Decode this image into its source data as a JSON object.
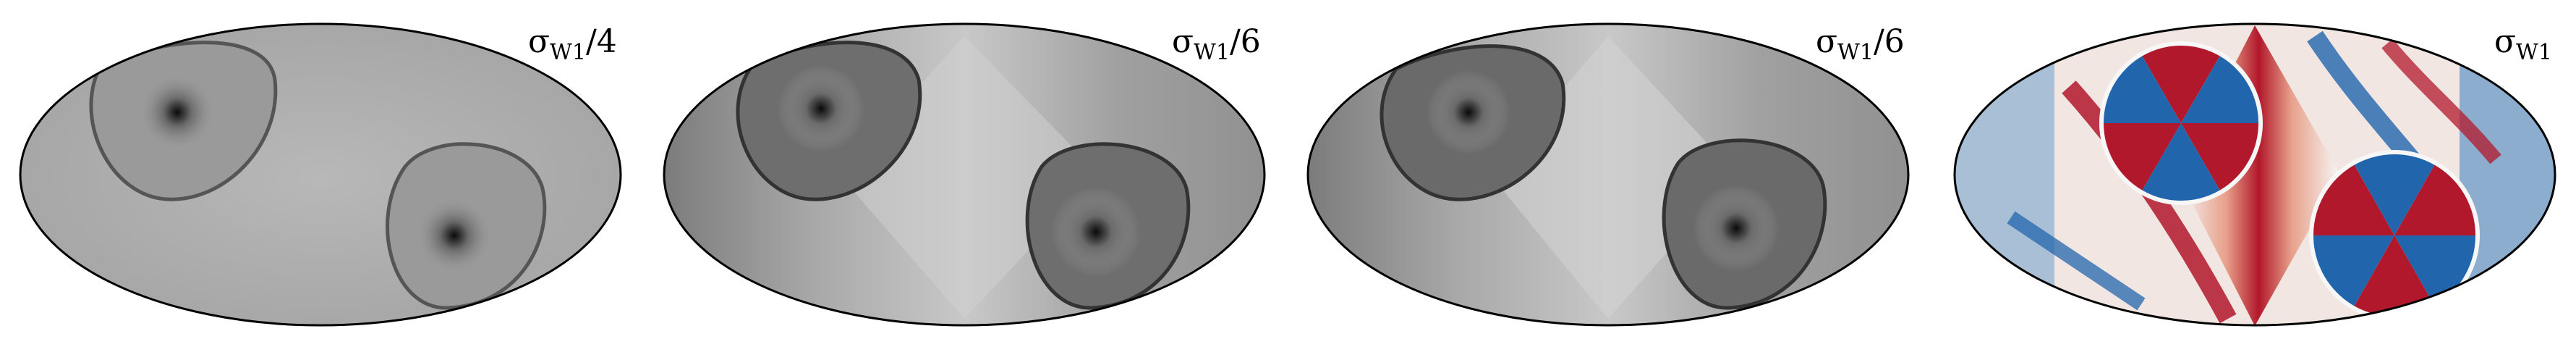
{
  "panels": [
    {
      "label_main": "σ",
      "label_sub": "W1",
      "label_suffix": "/4",
      "colormap": "gray"
    },
    {
      "label_main": "σ",
      "label_sub": "W1",
      "label_suffix": "/6",
      "colormap": "gray"
    },
    {
      "label_main": "σ",
      "label_sub": "W1",
      "label_suffix": "/6",
      "colormap": "gray"
    },
    {
      "label_main": "σ",
      "label_sub": "W1",
      "label_suffix": "",
      "colormap": "red-blue"
    }
  ],
  "colors": {
    "outline": "#000000",
    "gray_light": "#b4b4b4",
    "gray_mid": "#8a8a8a",
    "gray_dark": "#1c1c1c",
    "red": "#b2182b",
    "white": "#f7f7f7",
    "blue": "#2166ac"
  }
}
